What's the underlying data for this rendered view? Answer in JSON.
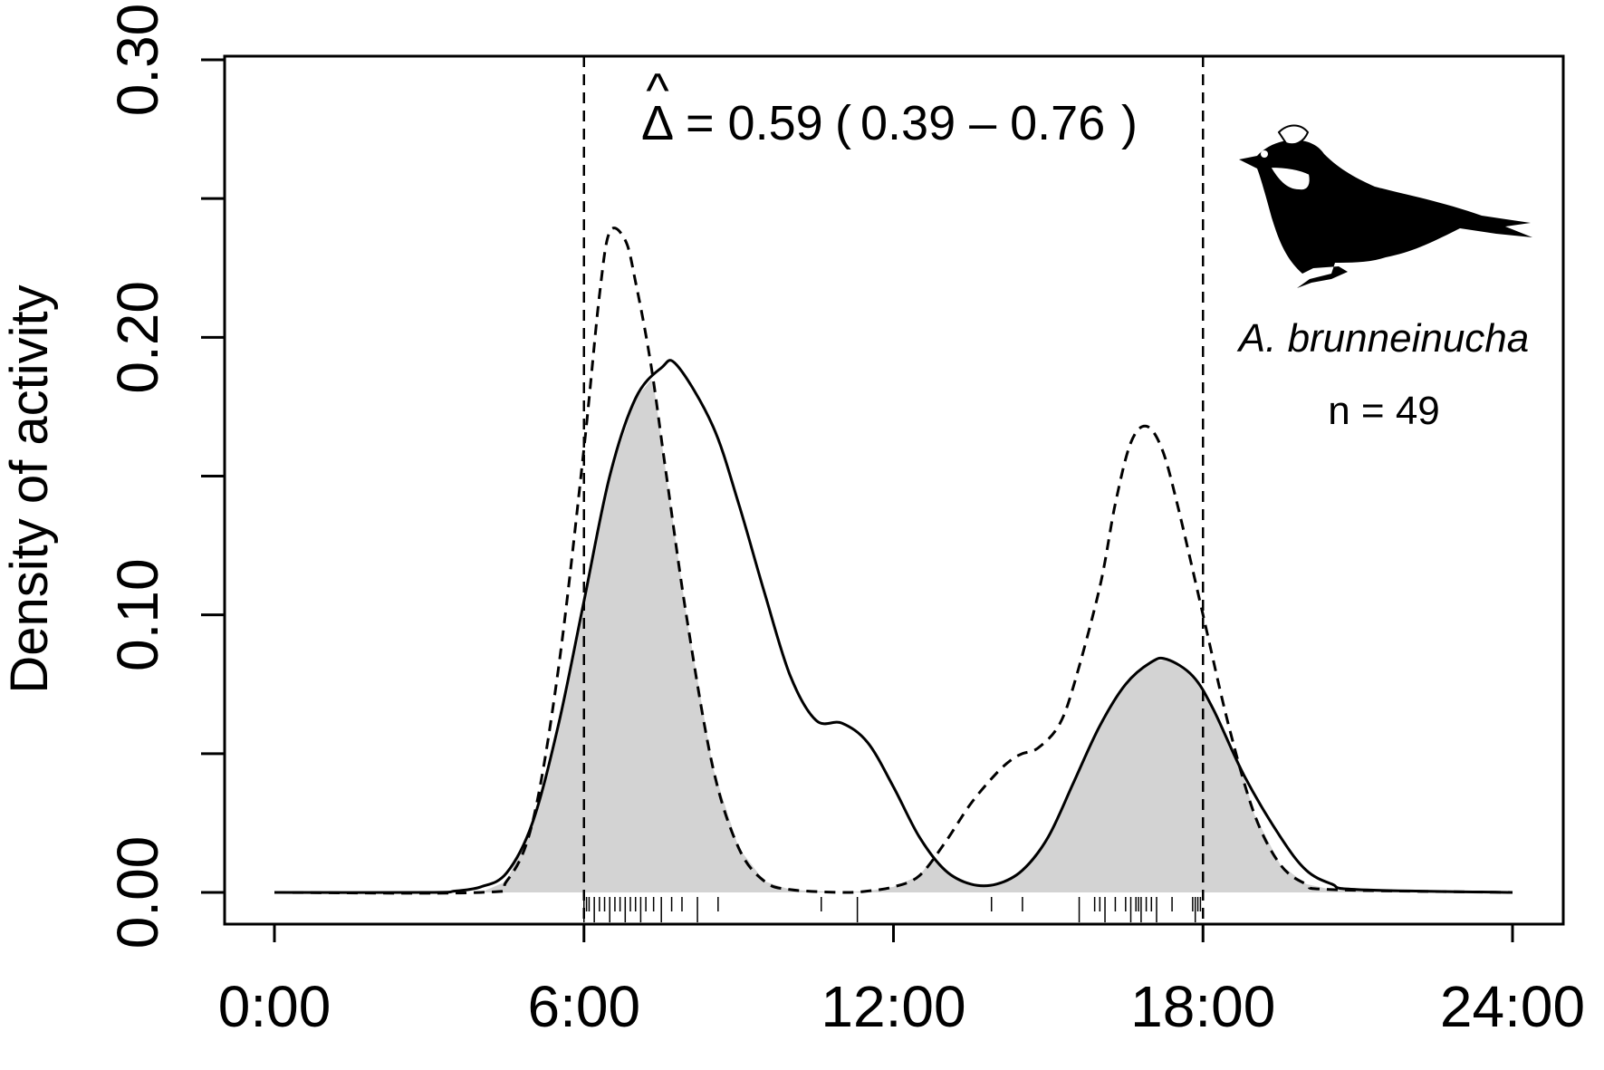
{
  "chart_data": {
    "type": "line",
    "ylabel": "Density of activity",
    "xlabel": "",
    "xlim": [
      0,
      24
    ],
    "ylim": [
      0,
      0.3
    ],
    "x_ticks": [
      {
        "value": 0,
        "label": "0:00"
      },
      {
        "value": 6,
        "label": "6:00"
      },
      {
        "value": 12,
        "label": "12:00"
      },
      {
        "value": 18,
        "label": "18:00"
      },
      {
        "value": 24,
        "label": "24:00"
      }
    ],
    "y_ticks": [
      {
        "value": 0.0,
        "label": "0.00"
      },
      {
        "value": 0.05,
        "label": ""
      },
      {
        "value": 0.1,
        "label": "0.10"
      },
      {
        "value": 0.15,
        "label": ""
      },
      {
        "value": 0.2,
        "label": "0.20"
      },
      {
        "value": 0.25,
        "label": ""
      },
      {
        "value": 0.3,
        "label": "0.30"
      }
    ],
    "reference_lines_x": [
      6,
      18
    ],
    "overlap_fill_color": "#d3d3d3",
    "series": [
      {
        "style": "solid",
        "x": [
          0,
          3,
          3.5,
          4,
          4.5,
          5,
          5.5,
          6,
          6.5,
          7,
          7.5,
          7.8,
          8.5,
          9,
          9.5,
          10,
          10.5,
          11,
          11.5,
          12,
          12.5,
          13,
          13.5,
          14,
          14.5,
          15,
          15.5,
          16,
          16.5,
          17,
          17.3,
          17.8,
          18.2,
          18.8,
          19.5,
          20,
          20.5,
          21,
          24
        ],
        "y": [
          0,
          0,
          0.0005,
          0.002,
          0.007,
          0.025,
          0.06,
          0.105,
          0.15,
          0.178,
          0.189,
          0.19,
          0.168,
          0.14,
          0.108,
          0.078,
          0.062,
          0.061,
          0.054,
          0.038,
          0.02,
          0.008,
          0.003,
          0.003,
          0.008,
          0.02,
          0.04,
          0.06,
          0.075,
          0.083,
          0.084,
          0.078,
          0.066,
          0.042,
          0.02,
          0.008,
          0.003,
          0.001,
          0
        ]
      },
      {
        "style": "dashed",
        "x": [
          0,
          4,
          4.5,
          5,
          5.5,
          6,
          6.3,
          6.5,
          6.8,
          7,
          7.3,
          7.6,
          8,
          8.5,
          9,
          9.5,
          10,
          11,
          11.5,
          12,
          12.5,
          13,
          13.5,
          14,
          14.3,
          14.5,
          14.8,
          15.2,
          15.5,
          16,
          16.3,
          16.6,
          16.9,
          17.2,
          17.5,
          18,
          18.5,
          19,
          19.5,
          20,
          20.5,
          24
        ],
        "y": [
          0,
          0,
          0.004,
          0.025,
          0.08,
          0.16,
          0.215,
          0.238,
          0.235,
          0.22,
          0.19,
          0.15,
          0.098,
          0.045,
          0.016,
          0.004,
          0.001,
          0,
          0.0005,
          0.002,
          0.006,
          0.018,
          0.032,
          0.043,
          0.048,
          0.05,
          0.052,
          0.06,
          0.075,
          0.11,
          0.14,
          0.162,
          0.168,
          0.16,
          0.14,
          0.1,
          0.06,
          0.028,
          0.01,
          0.003,
          0.001,
          0
        ]
      }
    ],
    "rug_times": [
      6.0,
      6.05,
      6.1,
      6.2,
      6.3,
      6.4,
      6.5,
      6.6,
      6.7,
      6.8,
      6.9,
      7.0,
      7.1,
      7.2,
      7.35,
      7.5,
      7.7,
      7.9,
      8.2,
      8.6,
      10.6,
      11.3,
      13.9,
      14.5,
      15.6,
      15.9,
      16.0,
      16.1,
      16.3,
      16.5,
      16.6,
      16.7,
      16.75,
      16.8,
      16.9,
      17.0,
      17.1,
      17.4,
      17.8,
      17.85,
      17.9,
      17.95
    ],
    "annotations": {
      "overlap_symbol": "Δ",
      "overlap_hat": "^",
      "overlap_value": "= 0.59",
      "overlap_ci_open": "(",
      "overlap_ci": "0.39 – 0.76",
      "overlap_ci_close": ")",
      "species": "A. brunneinucha",
      "sample_size": "n = 49"
    }
  }
}
